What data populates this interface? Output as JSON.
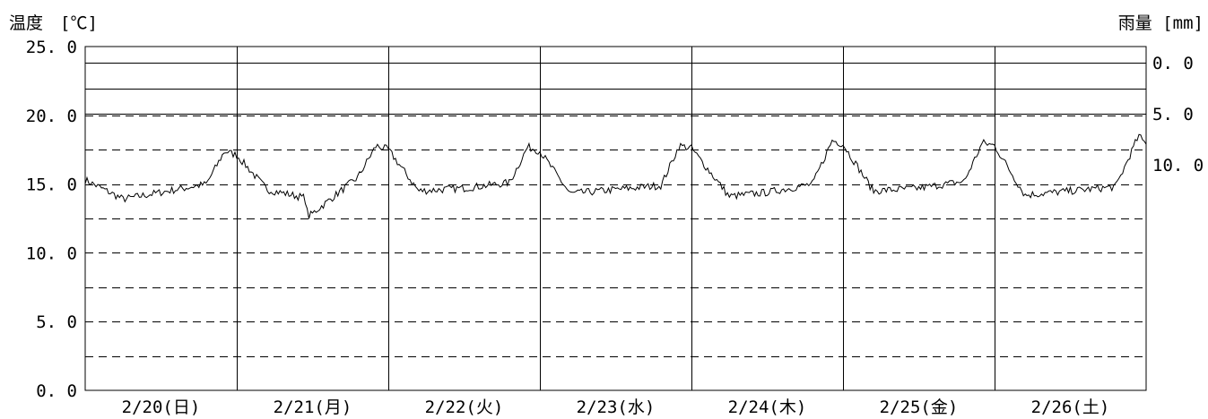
{
  "chart_data": {
    "type": "line",
    "left_axis_label": "温度　[℃]",
    "right_axis_label": "雨量 [mm]",
    "left_axis": {
      "ylim": [
        0,
        25
      ],
      "ticks": [
        0,
        5,
        10,
        15,
        20,
        25
      ],
      "tick_labels": [
        "0. 0",
        "5. 0",
        "10. 0",
        "15. 0",
        "20. 0",
        "25. 0"
      ],
      "minor_gridlines": [
        2.5,
        5,
        7.5,
        10,
        12.5,
        15,
        17.5,
        20
      ],
      "grid_style": "dashed"
    },
    "right_axis": {
      "range": [
        0,
        10
      ],
      "inverted": true,
      "ticks": [
        0,
        5,
        10
      ],
      "tick_labels": [
        "0. 0",
        "5. 0",
        "10. 0"
      ],
      "grid_style": "solid",
      "gridlines_mm": [
        0,
        2.5,
        5
      ]
    },
    "categories": [
      "2/20(日)",
      "2/21(月)",
      "2/22(火)",
      "2/23(水)",
      "2/24(木)",
      "2/25(金)",
      "2/26(土)"
    ],
    "series": [
      {
        "color": "#000000",
        "days": [
          {
            "start": 15.3,
            "dips": [
              [
                0.25,
                13.9
              ],
              [
                0.5,
                14.4
              ],
              [
                0.8,
                15.0
              ]
            ],
            "peak": [
              0.92,
              17.4
            ],
            "end": 17.1
          },
          {
            "start": 17.1,
            "dips": [
              [
                0.2,
                14.6
              ],
              [
                0.45,
                14.0
              ],
              [
                0.47,
                12.6
              ],
              [
                0.8,
                15.5
              ]
            ],
            "peak": [
              0.92,
              17.8
            ],
            "end": 17.5
          },
          {
            "start": 17.5,
            "dips": [
              [
                0.2,
                14.5
              ],
              [
                0.5,
                14.7
              ],
              [
                0.8,
                15.1
              ]
            ],
            "peak": [
              0.92,
              17.7
            ],
            "end": 17.4
          },
          {
            "start": 17.4,
            "dips": [
              [
                0.2,
                14.3
              ],
              [
                0.5,
                14.6
              ],
              [
                0.8,
                14.9
              ]
            ],
            "peak": [
              0.92,
              17.8
            ],
            "end": 17.6
          },
          {
            "start": 17.6,
            "dips": [
              [
                0.25,
                14.1
              ],
              [
                0.5,
                14.4
              ],
              [
                0.8,
                15.0
              ]
            ],
            "peak": [
              0.93,
              18.2
            ],
            "end": 17.9
          },
          {
            "start": 17.9,
            "dips": [
              [
                0.2,
                14.5
              ],
              [
                0.5,
                14.7
              ],
              [
                0.8,
                15.2
              ]
            ],
            "peak": [
              0.92,
              18.0
            ],
            "end": 17.8
          },
          {
            "start": 17.8,
            "dips": [
              [
                0.2,
                14.2
              ],
              [
                0.5,
                14.5
              ],
              [
                0.8,
                14.8
              ]
            ],
            "peak": [
              0.95,
              18.5
            ],
            "end": 17.9
          }
        ]
      }
    ]
  }
}
